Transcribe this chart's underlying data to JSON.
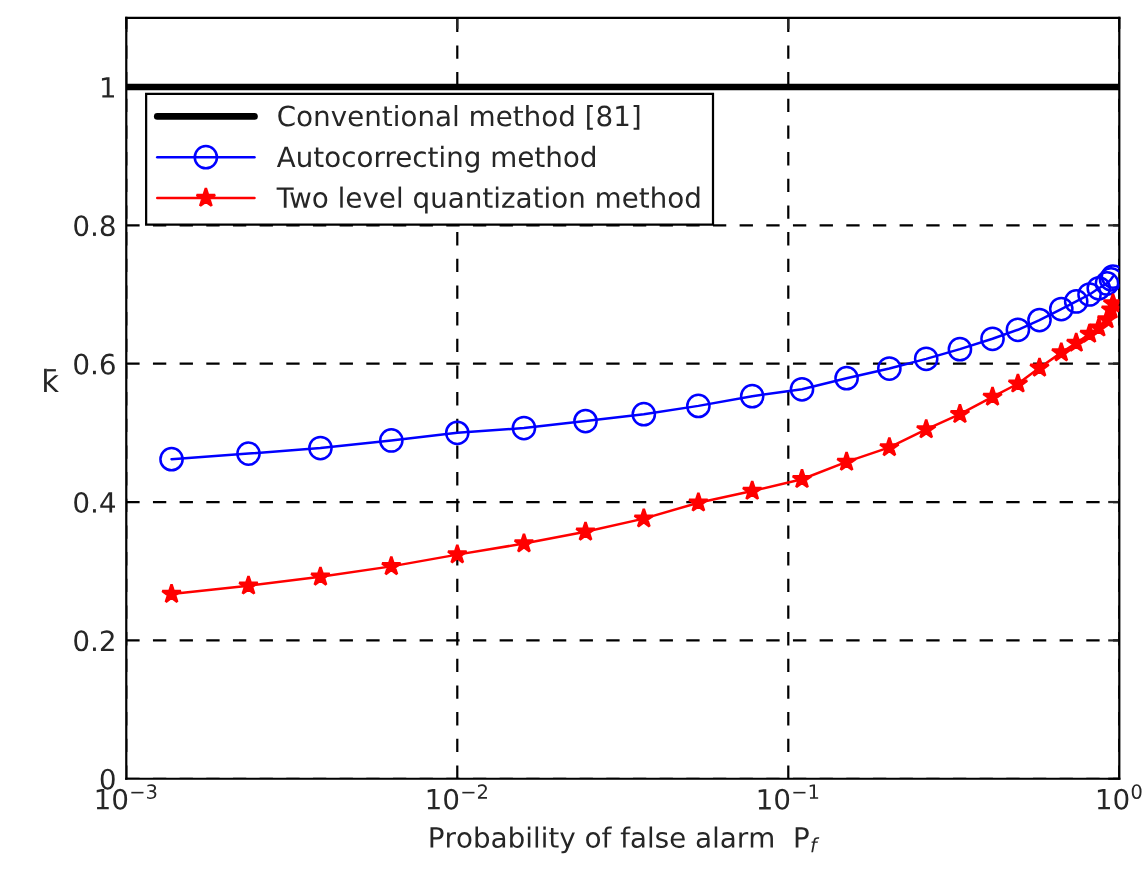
{
  "chart_data": {
    "type": "line",
    "xlabel": "Probability of false alarm  P$_{f}$",
    "ylabel": "k̄",
    "log": "x",
    "xlim": [
      0.001,
      1
    ],
    "ylim": [
      0,
      1.1
    ],
    "xticks": [
      {
        "value": 0.001,
        "label": "10$^{−3}$"
      },
      {
        "value": 0.01,
        "label": "10$^{−2}$"
      },
      {
        "value": 0.1,
        "label": "10$^{−1}$"
      },
      {
        "value": 1,
        "label": "10$^{0}$"
      }
    ],
    "yticks": [
      0,
      0.2,
      0.4,
      0.6,
      0.8,
      1
    ],
    "grid": true,
    "legend": "top left",
    "series": [
      {
        "name": "Conventional method [81]",
        "color": "#000000",
        "marker": "none",
        "x": [
          0.001,
          1
        ],
        "values": [
          1,
          1
        ]
      },
      {
        "name": "Autocorrecting method",
        "color": "#0000ff",
        "marker": "circle",
        "x": [
          0.00137,
          0.00234,
          0.00386,
          0.00632,
          0.01,
          0.0159,
          0.0244,
          0.0366,
          0.0535,
          0.0778,
          0.11,
          0.15,
          0.202,
          0.261,
          0.33,
          0.414,
          0.494,
          0.574,
          0.668,
          0.741,
          0.813,
          0.867,
          0.918,
          0.944,
          0.957
        ],
        "values": [
          0.462,
          0.47,
          0.478,
          0.489,
          0.5,
          0.507,
          0.517,
          0.527,
          0.539,
          0.553,
          0.563,
          0.579,
          0.593,
          0.607,
          0.621,
          0.636,
          0.649,
          0.663,
          0.679,
          0.69,
          0.7,
          0.709,
          0.716,
          0.722,
          0.726
        ]
      },
      {
        "name": "Two level quantization method",
        "color": "#ff0000",
        "marker": "star",
        "x": [
          0.00137,
          0.00234,
          0.00386,
          0.00632,
          0.01,
          0.0159,
          0.0244,
          0.0366,
          0.0535,
          0.0778,
          0.11,
          0.15,
          0.202,
          0.261,
          0.33,
          0.414,
          0.494,
          0.574,
          0.668,
          0.741,
          0.813,
          0.867,
          0.918,
          0.944,
          0.957
        ],
        "values": [
          0.267,
          0.279,
          0.292,
          0.307,
          0.324,
          0.34,
          0.357,
          0.376,
          0.399,
          0.416,
          0.433,
          0.458,
          0.479,
          0.505,
          0.527,
          0.552,
          0.571,
          0.594,
          0.616,
          0.63,
          0.643,
          0.652,
          0.664,
          0.678,
          0.687
        ]
      }
    ]
  }
}
